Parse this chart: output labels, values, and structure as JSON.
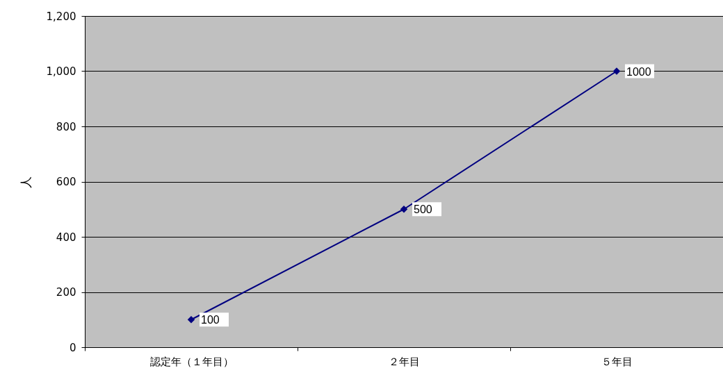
{
  "chart_data": {
    "type": "line",
    "categories": [
      "認定年（１年目）",
      "２年目",
      "５年目"
    ],
    "series": [
      {
        "color": "#000080",
        "values": [
          100,
          500,
          1000
        ]
      }
    ],
    "ylabel": "人",
    "ylim": [
      0,
      1200
    ],
    "yticks": [
      0,
      200,
      400,
      600,
      800,
      {
        "value": 1000,
        "label": "1,000"
      },
      {
        "value": 1200,
        "label": "1,200"
      }
    ],
    "grid": "y",
    "marker": "diamond",
    "line_style": "solid",
    "data_labels": true,
    "legend": false
  }
}
